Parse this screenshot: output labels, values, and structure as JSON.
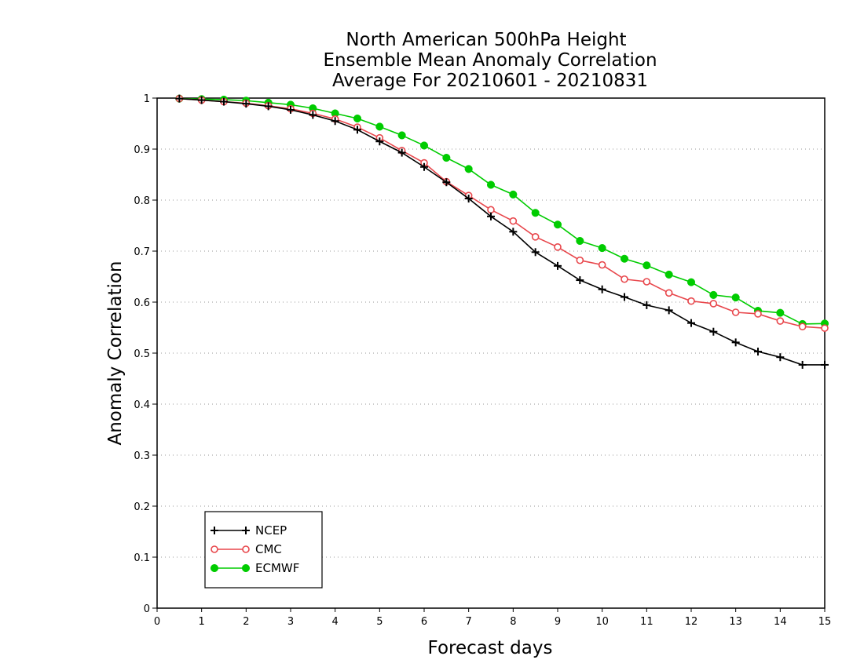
{
  "chart_data": {
    "type": "line",
    "title_lines": [
      "North American 500hPa Height",
      "Ensemble Mean Anomaly Correlation",
      "Average For 20210601 - 20210831"
    ],
    "xlabel": "Forecast days",
    "ylabel": "Anomaly Correlation",
    "xlim": [
      0,
      15
    ],
    "ylim": [
      0,
      1
    ],
    "x_ticks": [
      "0",
      "1",
      "2",
      "3",
      "4",
      "5",
      "6",
      "7",
      "8",
      "9",
      "10",
      "11",
      "12",
      "13",
      "14",
      "15"
    ],
    "y_ticks": [
      "0",
      "0.1",
      "0.2",
      "0.3",
      "0.4",
      "0.5",
      "0.6",
      "0.7",
      "0.8",
      "0.9",
      "1"
    ],
    "grid": "horizontal dotted",
    "legend_position": "bottom-left",
    "x": [
      0.5,
      1,
      1.5,
      2,
      2.5,
      3,
      3.5,
      4,
      4.5,
      5,
      5.5,
      6,
      6.5,
      7,
      7.5,
      8,
      8.5,
      9,
      9.5,
      10,
      10.5,
      11,
      11.5,
      12,
      12.5,
      13,
      13.5,
      14,
      14.5,
      15
    ],
    "series": [
      {
        "name": "NCEP",
        "color": "#000000",
        "marker": "plus",
        "values": [
          0.999,
          0.996,
          0.993,
          0.989,
          0.984,
          0.977,
          0.967,
          0.955,
          0.938,
          0.915,
          0.893,
          0.865,
          0.835,
          0.803,
          0.768,
          0.738,
          0.698,
          0.671,
          0.643,
          0.625,
          0.61,
          0.594,
          0.584,
          0.559,
          0.542,
          0.521,
          0.503,
          0.492,
          0.477,
          0.477
        ]
      },
      {
        "name": "CMC",
        "color": "#e8474c",
        "marker": "open-circle",
        "values": [
          0.999,
          0.996,
          0.993,
          0.99,
          0.985,
          0.979,
          0.97,
          0.959,
          0.943,
          0.922,
          0.897,
          0.873,
          0.836,
          0.809,
          0.781,
          0.759,
          0.728,
          0.708,
          0.682,
          0.673,
          0.645,
          0.64,
          0.618,
          0.602,
          0.597,
          0.58,
          0.577,
          0.563,
          0.552,
          0.549
        ]
      },
      {
        "name": "ECMWF",
        "color": "#00cc00",
        "marker": "filled-circle",
        "values": [
          0.999,
          0.998,
          0.997,
          0.995,
          0.991,
          0.987,
          0.98,
          0.97,
          0.96,
          0.944,
          0.927,
          0.907,
          0.883,
          0.861,
          0.83,
          0.811,
          0.775,
          0.752,
          0.72,
          0.706,
          0.685,
          0.672,
          0.654,
          0.639,
          0.614,
          0.609,
          0.583,
          0.579,
          0.557,
          0.558
        ]
      }
    ]
  }
}
